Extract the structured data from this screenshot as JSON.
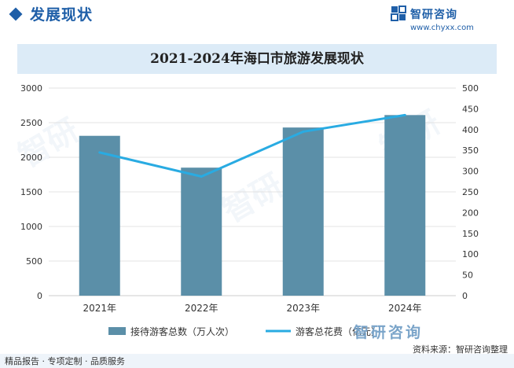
{
  "header": {
    "title": "发展现状",
    "brand_name": "智研咨询",
    "brand_url": "www.chyxx.com"
  },
  "footer": {
    "tagline": "精品报告 · 专项定制 · 品质服务",
    "source": "资料来源：智研咨询整理",
    "logo_text": "智研咨询"
  },
  "colors": {
    "bar": "#5b8fa8",
    "line": "#29abe2",
    "brand": "#1f5fa8"
  },
  "chart_data": {
    "type": "bar",
    "title": "2021-2024年海口市旅游发展现状",
    "categories": [
      "2021年",
      "2022年",
      "2023年",
      "2024年"
    ],
    "series": [
      {
        "name": "接待游客总数（万人次）",
        "type": "bar",
        "axis": "left",
        "values": [
          2310,
          1850,
          2430,
          2610
        ]
      },
      {
        "name": "游客总花费（亿元）",
        "type": "line",
        "axis": "right",
        "values": [
          345,
          287,
          395,
          435
        ]
      }
    ],
    "ylim_left": [
      0,
      3000
    ],
    "yticks_left": [
      0,
      500,
      1000,
      1500,
      2000,
      2500,
      3000
    ],
    "ylim_right": [
      0,
      500
    ],
    "yticks_right": [
      0,
      50,
      100,
      150,
      200,
      250,
      300,
      350,
      400,
      450,
      500
    ],
    "grid": true,
    "legend": "bottom"
  }
}
